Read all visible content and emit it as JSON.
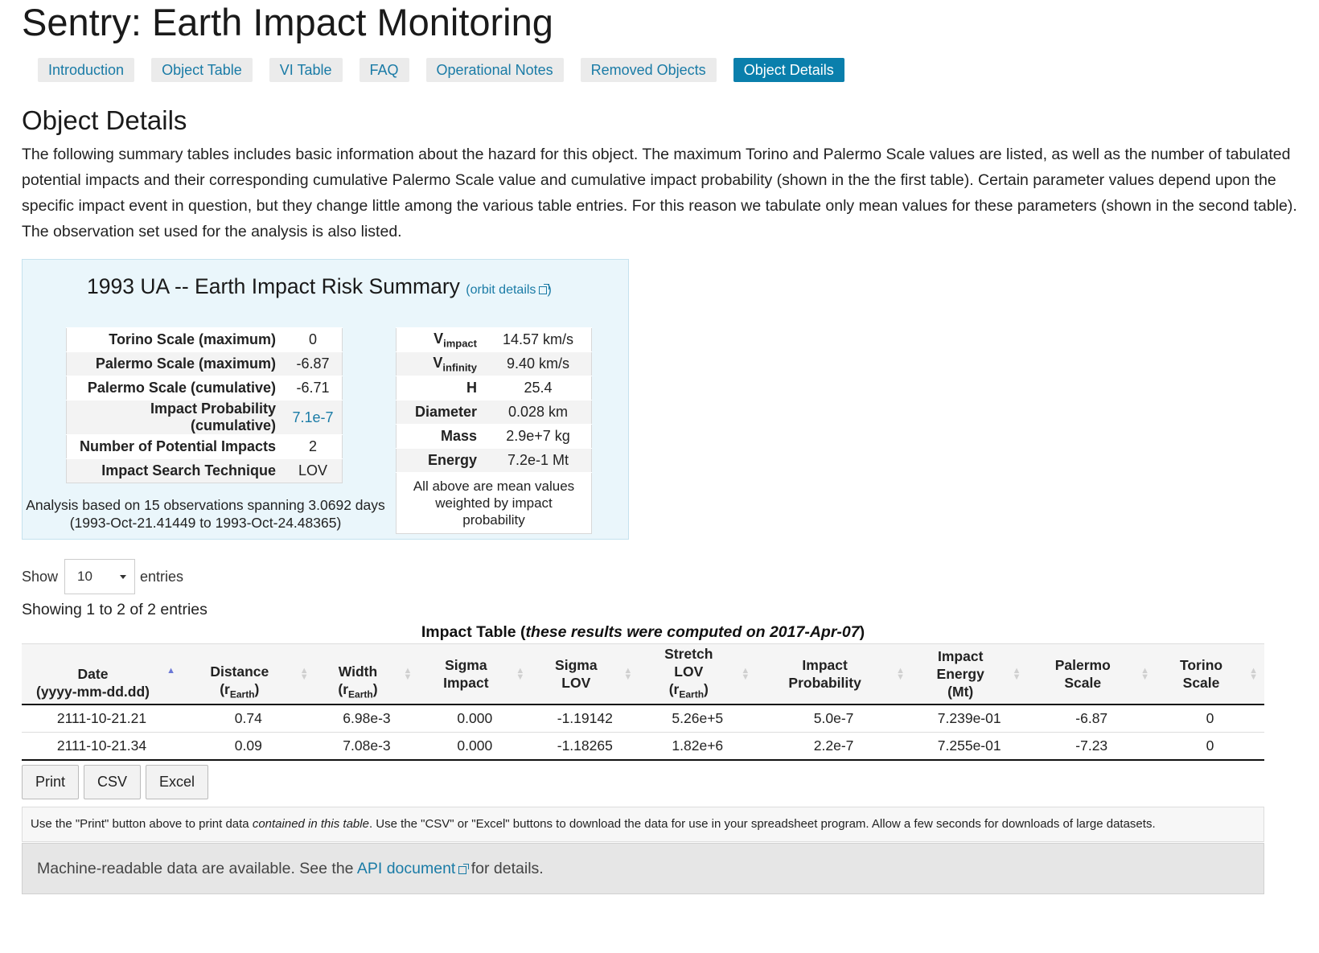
{
  "page": {
    "title": "Sentry: Earth Impact Monitoring",
    "nav": [
      "Introduction",
      "Object Table",
      "VI Table",
      "FAQ",
      "Operational Notes",
      "Removed Objects",
      "Object Details"
    ],
    "active_nav": "Object Details",
    "section_title": "Object Details",
    "intro": "The following summary tables includes basic information about the hazard for this object. The maximum Torino and Palermo Scale values are listed, as well as the number of tabulated potential impacts and their corresponding cumulative Palermo Scale value and cumulative impact probability (shown in the the first table). Certain parameter values depend upon the specific impact event in question, but they change little among the various table entries. For this reason we tabulate only mean values for these parameters (shown in the second table). The observation set used for the analysis is also listed."
  },
  "summary": {
    "title": "1993 UA -- Earth Impact Risk Summary",
    "orbit_link": "orbit details",
    "left": [
      {
        "label": "Torino Scale (maximum)",
        "value": "0"
      },
      {
        "label": "Palermo Scale (maximum)",
        "value": "-6.87"
      },
      {
        "label": "Palermo Scale (cumulative)",
        "value": "-6.71"
      },
      {
        "label": "Impact Probability (cumulative)",
        "value": "7.1e-7"
      },
      {
        "label": "Number of Potential Impacts",
        "value": "2"
      },
      {
        "label": "Impact Search Technique",
        "value": "LOV"
      }
    ],
    "right": [
      {
        "label": "V",
        "sub": "impact",
        "value": "14.57 km/s"
      },
      {
        "label": "V",
        "sub": "infinity",
        "value": "9.40 km/s"
      },
      {
        "label": "H",
        "sub": "",
        "value": "25.4"
      },
      {
        "label": "Diameter",
        "sub": "",
        "value": "0.028 km"
      },
      {
        "label": "Mass",
        "sub": "",
        "value": "2.9e+7 kg"
      },
      {
        "label": "Energy",
        "sub": "",
        "value": "7.2e-1 Mt"
      }
    ],
    "right_note_1": "All above are mean values",
    "right_note_2": "weighted by impact probability",
    "analysis_1": "Analysis based on 15 observations spanning 3.0692 days",
    "analysis_2": "(1993-Oct-21.41449 to 1993-Oct-24.48365)"
  },
  "table_controls": {
    "show_label": "Show",
    "entries_value": "10",
    "entries_label": "entries",
    "showing": "Showing 1 to 2 of 2 entries"
  },
  "impact_table": {
    "caption_prefix": "Impact Table (",
    "caption_italic": "these results were computed on 2017-Apr-07",
    "caption_suffix": ")",
    "headers": [
      {
        "l1": "",
        "l2": "Date",
        "l3": "(yyyy-mm-dd.dd)"
      },
      {
        "l1": "",
        "l2": "Distance",
        "l3": "(rEarth)"
      },
      {
        "l1": "",
        "l2": "Width",
        "l3": "(rEarth)"
      },
      {
        "l1": "Sigma",
        "l2": "Impact",
        "l3": ""
      },
      {
        "l1": "Sigma",
        "l2": "LOV",
        "l3": ""
      },
      {
        "l1": "Stretch",
        "l2": "LOV",
        "l3": "(rEarth)"
      },
      {
        "l1": "Impact",
        "l2": "Probability",
        "l3": ""
      },
      {
        "l1": "Impact",
        "l2": "Energy",
        "l3": "(Mt)"
      },
      {
        "l1": "Palermo",
        "l2": "Scale",
        "l3": ""
      },
      {
        "l1": "Torino",
        "l2": "Scale",
        "l3": ""
      }
    ],
    "rows": [
      [
        "2111-10-21.21",
        "0.74",
        "6.98e-3",
        "0.000",
        "-1.19142",
        "5.26e+5",
        "5.0e-7",
        "7.239e-01",
        "-6.87",
        "0"
      ],
      [
        "2111-10-21.34",
        "0.09",
        "7.08e-3",
        "0.000",
        "-1.18265",
        "1.82e+6",
        "2.2e-7",
        "7.255e-01",
        "-7.23",
        "0"
      ]
    ]
  },
  "buttons": {
    "print": "Print",
    "csv": "CSV",
    "excel": "Excel"
  },
  "hint": {
    "part1": "Use the \"Print\" button above to print data ",
    "italic": "contained in this table",
    "part2": ". Use the \"CSV\" or \"Excel\" buttons to download the data for use in your spreadsheet program. Allow a few seconds for downloads of large datasets."
  },
  "machine": {
    "part1": "Machine-readable data are available. See the ",
    "link": "API document",
    "part2": " for details."
  },
  "colors": {
    "accent": "#0a7fac",
    "link": "#1a7ba6",
    "summary_bg": "#eaf6fb"
  }
}
